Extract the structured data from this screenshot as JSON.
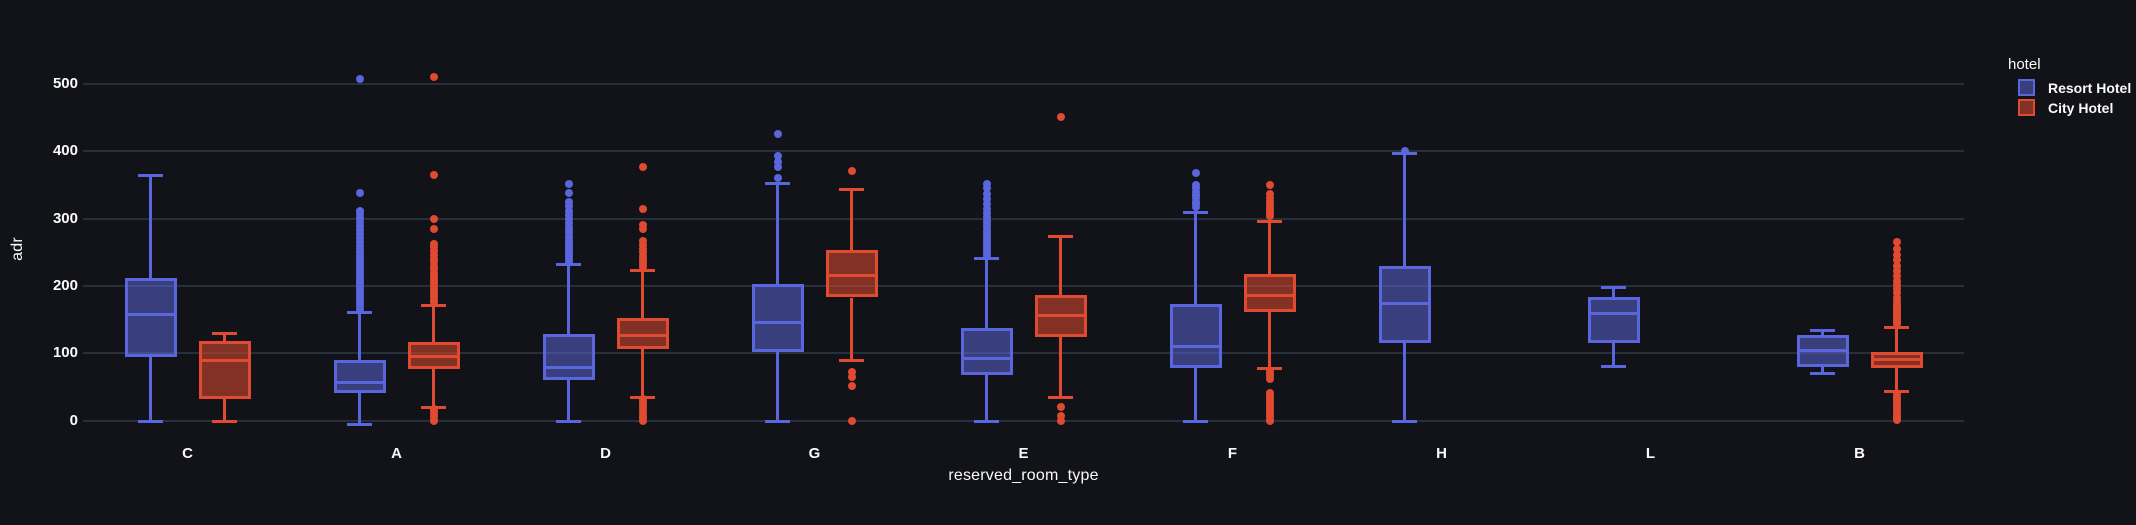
{
  "chart_data": {
    "type": "box",
    "title": "",
    "xlabel": "reserved_room_type",
    "ylabel": "adr",
    "categories": [
      "C",
      "A",
      "D",
      "G",
      "E",
      "F",
      "H",
      "L",
      "B"
    ],
    "y_ticks": [
      0,
      100,
      200,
      300,
      400,
      500
    ],
    "ylim": [
      -58,
      602
    ],
    "grid": true,
    "legend": {
      "title": "hotel",
      "position": "top-right",
      "entries": [
        "Resort Hotel",
        "City Hotel"
      ]
    },
    "colors": {
      "background": "#121318",
      "gridline": "#2a3240",
      "text": "#fafafa",
      "resort_stroke": "#5a66de",
      "resort_fill": "rgba(95,105,225,0.5)",
      "city_stroke": "#df4a30",
      "city_fill": "rgba(223,74,48,0.55)"
    },
    "series": [
      {
        "name": "Resort Hotel",
        "key": "resort-hotel",
        "stroke": "#5a66de",
        "fill": "rgba(95,105,225,0.5)",
        "boxes": [
          {
            "category": "C",
            "whisker_low": 0,
            "q1": 95,
            "median": 159,
            "q3": 212,
            "whisker_high": 365,
            "outliers": []
          },
          {
            "category": "A",
            "whisker_low": -4,
            "q1": 41,
            "median": 57,
            "q3": 91,
            "whisker_high": 161,
            "outliers": [
              165,
              169,
              173,
              177,
              181,
              185,
              189,
              193,
              197,
              201,
              205,
              209,
              213,
              217,
              221,
              225,
              229,
              233,
              237,
              241,
              245,
              250,
              255,
              260,
              265,
              271,
              277,
              283,
              289,
              295,
              301,
              307,
              312,
              338,
              507
            ]
          },
          {
            "category": "D",
            "whisker_low": 0,
            "q1": 61,
            "median": 80,
            "q3": 129,
            "whisker_high": 232,
            "outliers": [
              236,
              240,
              244,
              248,
              252,
              256,
              260,
              264,
              268,
              273,
              278,
              283,
              288,
              294,
              300,
              306,
              312,
              318,
              325,
              338,
              352
            ]
          },
          {
            "category": "G",
            "whisker_low": 0,
            "q1": 102,
            "median": 147,
            "q3": 203,
            "whisker_high": 353,
            "outliers": [
              360,
              376,
              384,
              393,
              425
            ]
          },
          {
            "category": "E",
            "whisker_low": 0,
            "q1": 68,
            "median": 93,
            "q3": 138,
            "whisker_high": 242,
            "outliers": [
              245,
              249,
              253,
              257,
              261,
              265,
              269,
              273,
              277,
              282,
              287,
              292,
              297,
              303,
              309,
              315,
              322,
              329,
              337,
              345,
              352
            ]
          },
          {
            "category": "F",
            "whisker_low": 0,
            "q1": 78,
            "median": 111,
            "q3": 173,
            "whisker_high": 310,
            "outliers": [
              317,
              321,
              325,
              330,
              335,
              340,
              345,
              350,
              367
            ]
          },
          {
            "category": "H",
            "whisker_low": 0,
            "q1": 116,
            "median": 175,
            "q3": 229,
            "whisker_high": 397,
            "outliers": [
              401
            ]
          },
          {
            "category": "L",
            "whisker_low": 82,
            "q1": 116,
            "median": 160,
            "q3": 184,
            "whisker_high": 199,
            "outliers": []
          },
          {
            "category": "B",
            "whisker_low": 71,
            "q1": 80,
            "median": 105,
            "q3": 127,
            "whisker_high": 135,
            "outliers": []
          }
        ]
      },
      {
        "name": "City Hotel",
        "key": "city-hotel",
        "stroke": "#df4a30",
        "fill": "rgba(223,74,48,0.55)",
        "boxes": [
          {
            "category": "C",
            "whisker_low": 0,
            "q1": 32,
            "median": 90,
            "q3": 119,
            "whisker_high": 131,
            "outliers": []
          },
          {
            "category": "A",
            "whisker_low": 21,
            "q1": 77,
            "median": 96,
            "q3": 117,
            "whisker_high": 172,
            "outliers": [
              176,
              180,
              184,
              188,
              192,
              196,
              200,
              204,
              208,
              212,
              216,
              220,
              225,
              230,
              235,
              240,
              246,
              252,
              258,
              262,
              285,
              300,
              365,
              510,
              18,
              14,
              10,
              6,
              2,
              0
            ]
          },
          {
            "category": "D",
            "whisker_low": 36,
            "q1": 107,
            "median": 128,
            "q3": 152,
            "whisker_high": 224,
            "outliers": [
              228,
              232,
              236,
              240,
              245,
              250,
              255,
              261,
              267,
              284,
              290,
              314,
              376,
              32,
              28,
              24,
              20,
              16,
              12,
              8,
              4,
              0
            ]
          },
          {
            "category": "G",
            "whisker_low": 90,
            "q1": 183,
            "median": 217,
            "q3": 254,
            "whisker_high": 344,
            "outliers": [
              371,
              72,
              65,
              52,
              0
            ]
          },
          {
            "category": "E",
            "whisker_low": 36,
            "q1": 125,
            "median": 157,
            "q3": 187,
            "whisker_high": 274,
            "outliers": [
              450,
              20,
              7,
              0
            ]
          },
          {
            "category": "F",
            "whisker_low": 78,
            "q1": 161,
            "median": 187,
            "q3": 218,
            "whisker_high": 297,
            "outliers": [
              304,
              308,
              312,
              316,
              320,
              325,
              330,
              337,
              350,
              74,
              70,
              66,
              62,
              42,
              38,
              34,
              30,
              26,
              22,
              18,
              14,
              10,
              6,
              2,
              0
            ]
          },
          null,
          null,
          {
            "category": "B",
            "whisker_low": 44,
            "q1": 78,
            "median": 92,
            "q3": 102,
            "whisker_high": 139,
            "outliers": [
              143,
              146,
              149,
              152,
              155,
              158,
              161,
              164,
              167,
              170,
              174,
              178,
              183,
              190,
              196,
              202,
              208,
              215,
              222,
              230,
              238,
              246,
              255,
              265,
              40,
              36,
              32,
              28,
              24,
              20,
              16,
              12,
              8,
              4,
              1
            ]
          }
        ]
      }
    ]
  }
}
